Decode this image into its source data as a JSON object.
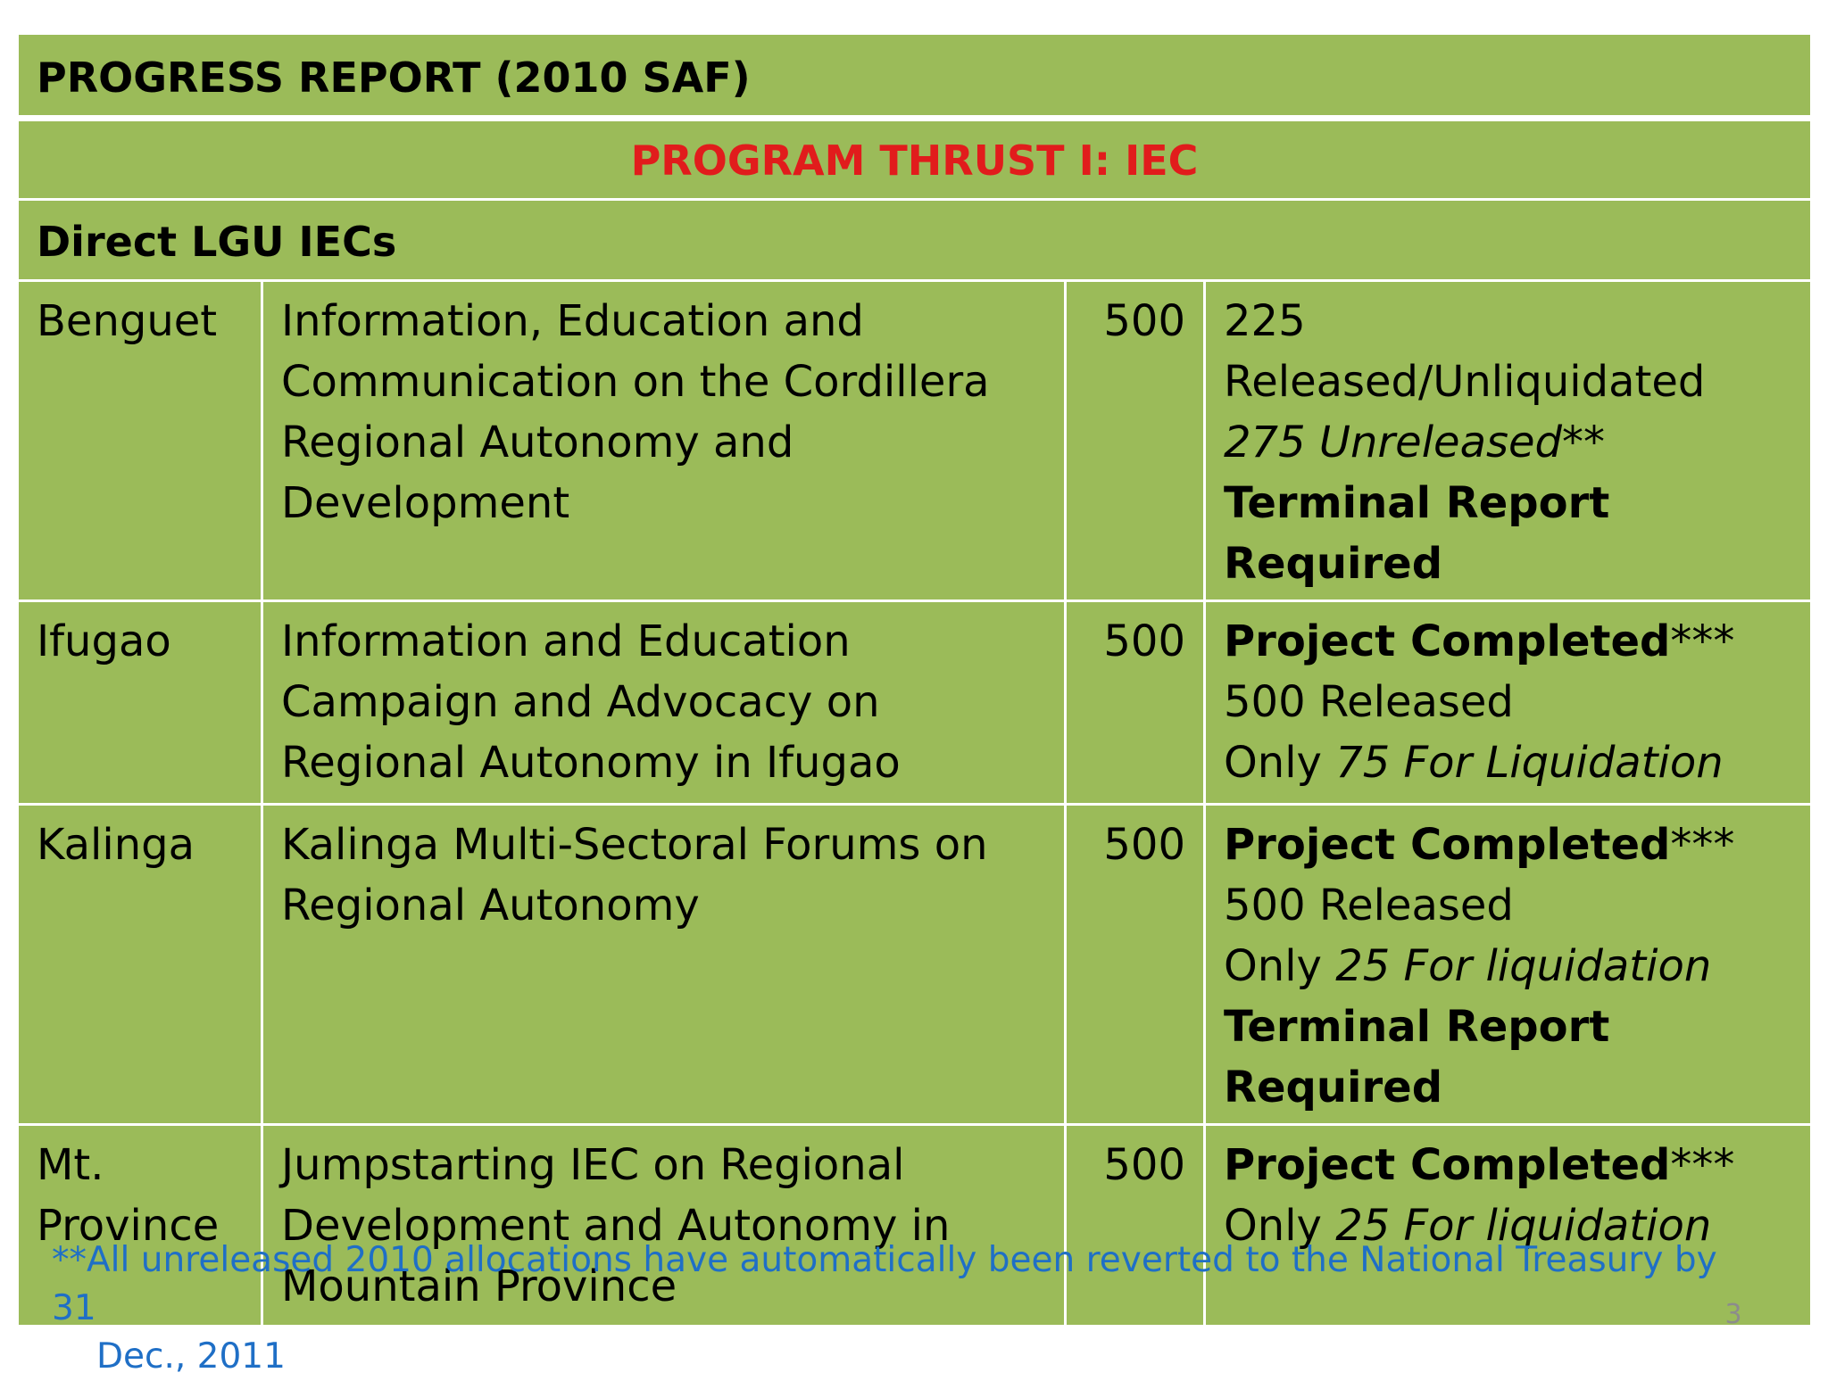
{
  "title": "PROGRESS REPORT (2010 SAF)",
  "thrust": "PROGRAM THRUST I: IEC",
  "subheading": "Direct LGU IECs",
  "rows": [
    {
      "province": "Benguet",
      "project": "Information, Education and Communication on the Cordillera Regional Autonomy and Development",
      "amount": "500",
      "status": [
        {
          "text": "225 Released/Unliquidated"
        },
        {
          "italic": "275 Unreleased**"
        },
        {
          "bold": "Terminal Report Required"
        }
      ]
    },
    {
      "province": "Ifugao",
      "project": "Information and Education Campaign and Advocacy on Regional Autonomy in Ifugao",
      "amount": "500",
      "status": [
        {
          "bold": "Project Completed",
          "italic": "***"
        },
        {
          "text": "500 Released"
        },
        {
          "text": "Only ",
          "italic": "75 For Liquidation"
        }
      ]
    },
    {
      "province": "Kalinga",
      "project": "Kalinga Multi-Sectoral Forums on Regional Autonomy",
      "amount": "500",
      "status": [
        {
          "bold": "Project Completed",
          "italic": "***"
        },
        {
          "text": "500 Released"
        },
        {
          "text": "Only ",
          "italic": "25 For liquidation"
        },
        {
          "bold": "Terminal Report Required"
        }
      ]
    },
    {
      "province": "Mt. Province",
      "project": "Jumpstarting IEC on Regional Development and Autonomy in Mountain Province",
      "amount": "500",
      "status": [
        {
          "bold": "Project Completed",
          "italic": "***"
        },
        {
          "text": "Only ",
          "italic": "25 For liquidation"
        }
      ]
    }
  ],
  "footnote": {
    "line1": "**All unreleased 2010 allocations have automatically been reverted to the National Treasury by 31",
    "line2": "Dec., 2011"
  },
  "page_number": "3",
  "colors": {
    "table_fill": "#9bbb59",
    "thrust_text": "#e11c1c",
    "footnote_text": "#1f6fc6",
    "page_number_text": "#8c8c8c"
  }
}
